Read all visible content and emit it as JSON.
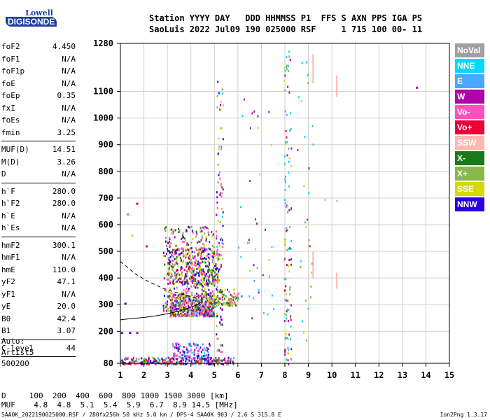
{
  "logo": {
    "line1": "Lowell",
    "line2": "DIGISONDE"
  },
  "header": {
    "row1": "Station YYYY DAY   DDD HHMMSS P1  FFS S AXN PPS IGA PS",
    "row2": "SaoLuis 2022 Jul09 190 025000 RSF     1 715 100 00- 11"
  },
  "params": [
    {
      "k": "foF2",
      "v": "4.450"
    },
    {
      "k": "foF1",
      "v": "N/A"
    },
    {
      "k": "foF1p",
      "v": "N/A"
    },
    {
      "k": "foE",
      "v": "N/A"
    },
    {
      "k": "foEp",
      "v": "0.35"
    },
    {
      "k": "fxI",
      "v": "N/A"
    },
    {
      "k": "foEs",
      "v": "N/A"
    },
    {
      "k": "fmin",
      "v": "3.25"
    },
    {
      "sep": true
    },
    {
      "k": "MUF(D)",
      "v": "14.51"
    },
    {
      "k": "M(D)",
      "v": "3.26"
    },
    {
      "k": "D",
      "v": "N/A"
    },
    {
      "sep": true
    },
    {
      "k": "h`F",
      "v": "280.0"
    },
    {
      "k": "h`F2",
      "v": "280.0"
    },
    {
      "k": "h`E",
      "v": "N/A"
    },
    {
      "k": "h`Es",
      "v": "N/A"
    },
    {
      "sep": true
    },
    {
      "k": "hmF2",
      "v": "300.1"
    },
    {
      "k": "hmF1",
      "v": "N/A"
    },
    {
      "k": "hmE",
      "v": "110.0"
    },
    {
      "k": "yF2",
      "v": "47.1"
    },
    {
      "k": "yF1",
      "v": "N/A"
    },
    {
      "k": "yE",
      "v": "20.0"
    },
    {
      "k": "B0",
      "v": "42.4"
    },
    {
      "k": "B1",
      "v": "3.07"
    },
    {
      "sep": true
    },
    {
      "k": "C-level",
      "v": "44"
    },
    {
      "sep": true
    }
  ],
  "auto": {
    "line1": "Auto:",
    "line2": "Artist5",
    "line3": "500200"
  },
  "legend": [
    {
      "label": "NoVal",
      "color": "#a0a0a0"
    },
    {
      "label": "NNE",
      "color": "#00d8ff"
    },
    {
      "label": "E",
      "color": "#4aa8ff"
    },
    {
      "label": "W",
      "color": "#b000a8"
    },
    {
      "label": "Vo-",
      "color": "#ff50c0"
    },
    {
      "label": "Vo+",
      "color": "#e8003a"
    },
    {
      "label": "SSW",
      "color": "#ffb8b0"
    },
    {
      "label": "X-",
      "color": "#1a7a1a"
    },
    {
      "label": "X+",
      "color": "#88b848"
    },
    {
      "label": "SSE",
      "color": "#d8d800"
    },
    {
      "label": "NNW",
      "color": "#2a00e0"
    }
  ],
  "bottom": {
    "row1": "D     100  200  400  600  800 1000 1500 3000 [km]",
    "row2": "MUF    4.8  4.8  5.1  5.4  5.9  6.7  8.9 14.5 [MHz]"
  },
  "footer": "SAA0K_2022190025000.RSF / 280fx256h 50 kHz 5.0 km / DPS-4 SAA0K 903 / 2.6 S 315.8 E",
  "version": "Ion2Png 1.3.17",
  "chart_data": {
    "type": "scatter",
    "x_ticks": [
      1,
      2,
      3,
      4,
      5,
      6,
      7,
      8,
      9,
      10,
      11,
      12,
      13,
      14,
      15
    ],
    "y_ticks": [
      80,
      200,
      300,
      400,
      500,
      600,
      700,
      800,
      900,
      1000,
      1100,
      1280
    ],
    "xlim": [
      1,
      15
    ],
    "ylim": [
      80,
      1280
    ],
    "grid": true,
    "legend_position": "right",
    "trace_curve": {
      "style": "solid",
      "x": [
        1.0,
        1.5,
        2.0,
        2.5,
        3.0,
        3.5,
        3.8,
        4.1,
        4.3,
        4.45
      ],
      "y": [
        243,
        248,
        252,
        258,
        266,
        276,
        284,
        294,
        302,
        310
      ]
    },
    "trace_curve_dashed": {
      "style": "dashed",
      "x": [
        1.0,
        1.3,
        1.6,
        2.0,
        2.4,
        2.8,
        3.2,
        3.6,
        4.0,
        4.3
      ],
      "y": [
        462,
        440,
        418,
        396,
        378,
        362,
        350,
        340,
        330,
        322
      ]
    },
    "clusters": [
      {
        "name": "F-trace",
        "x": [
          3.1,
          5.0
        ],
        "y": [
          260,
          350
        ],
        "n": 420,
        "palette": [
          4,
          3,
          5,
          7,
          8,
          10,
          9,
          2
        ]
      },
      {
        "name": "F-spread",
        "x": [
          2.8,
          5.0
        ],
        "y": [
          280,
          600
        ],
        "n": 380,
        "palette": [
          4,
          3,
          10,
          8,
          7,
          9
        ]
      },
      {
        "name": "F-high",
        "x": [
          3.0,
          5.2
        ],
        "y": [
          380,
          520
        ],
        "n": 320,
        "palette": [
          7,
          8,
          9,
          4,
          5,
          10
        ]
      },
      {
        "name": "F-ext",
        "x": [
          5.0,
          6.0
        ],
        "y": [
          300,
          360
        ],
        "n": 90,
        "palette": [
          9,
          8,
          4,
          7
        ]
      },
      {
        "name": "E-band",
        "x": [
          1.0,
          5.8
        ],
        "y": [
          80,
          105
        ],
        "n": 320,
        "palette": [
          3,
          4,
          10,
          8,
          7,
          2,
          5
        ]
      },
      {
        "name": "E-spread",
        "x": [
          3.2,
          4.8
        ],
        "y": [
          100,
          160
        ],
        "n": 120,
        "palette": [
          1,
          2,
          4,
          10,
          3
        ]
      },
      {
        "name": "line-5.2",
        "x": [
          5.05,
          5.35
        ],
        "y": [
          120,
          1200
        ],
        "n": 110,
        "palette": [
          10,
          3,
          1,
          8,
          9,
          4
        ]
      },
      {
        "name": "line-8",
        "x": [
          7.95,
          8.25
        ],
        "y": [
          80,
          1260
        ],
        "n": 120,
        "palette": [
          1,
          2,
          8,
          9,
          3,
          5
        ]
      },
      {
        "name": "scatter-6",
        "x": [
          6.0,
          7.5
        ],
        "y": [
          250,
          1100
        ],
        "n": 40,
        "palette": [
          1,
          2,
          9,
          3
        ]
      },
      {
        "name": "scatter-9",
        "x": [
          8.5,
          9.2
        ],
        "y": [
          150,
          1250
        ],
        "n": 30,
        "palette": [
          9,
          8,
          3,
          1
        ]
      }
    ],
    "ssw_bars": [
      {
        "x": 9.2,
        "y": [
          400,
          500
        ]
      },
      {
        "x": 9.2,
        "y": [
          1130,
          1240
        ]
      },
      {
        "x": 10.2,
        "y": [
          360,
          420
        ]
      },
      {
        "x": 10.2,
        "y": [
          1080,
          1160
        ]
      }
    ],
    "isolated_points": [
      {
        "x": 13.6,
        "y": 1115,
        "c": 3
      },
      {
        "x": 10.2,
        "y": 690,
        "c": 6
      },
      {
        "x": 9.7,
        "y": 695,
        "c": 6
      },
      {
        "x": 1.7,
        "y": 680,
        "c": 3
      },
      {
        "x": 1.3,
        "y": 640,
        "c": 4
      },
      {
        "x": 1.5,
        "y": 560,
        "c": 9
      },
      {
        "x": 2.1,
        "y": 520,
        "c": 5
      },
      {
        "x": 1.2,
        "y": 305,
        "c": 10
      },
      {
        "x": 1.05,
        "y": 195,
        "c": 10
      },
      {
        "x": 1.4,
        "y": 195,
        "c": 10
      },
      {
        "x": 1.7,
        "y": 195,
        "c": 3
      }
    ]
  }
}
